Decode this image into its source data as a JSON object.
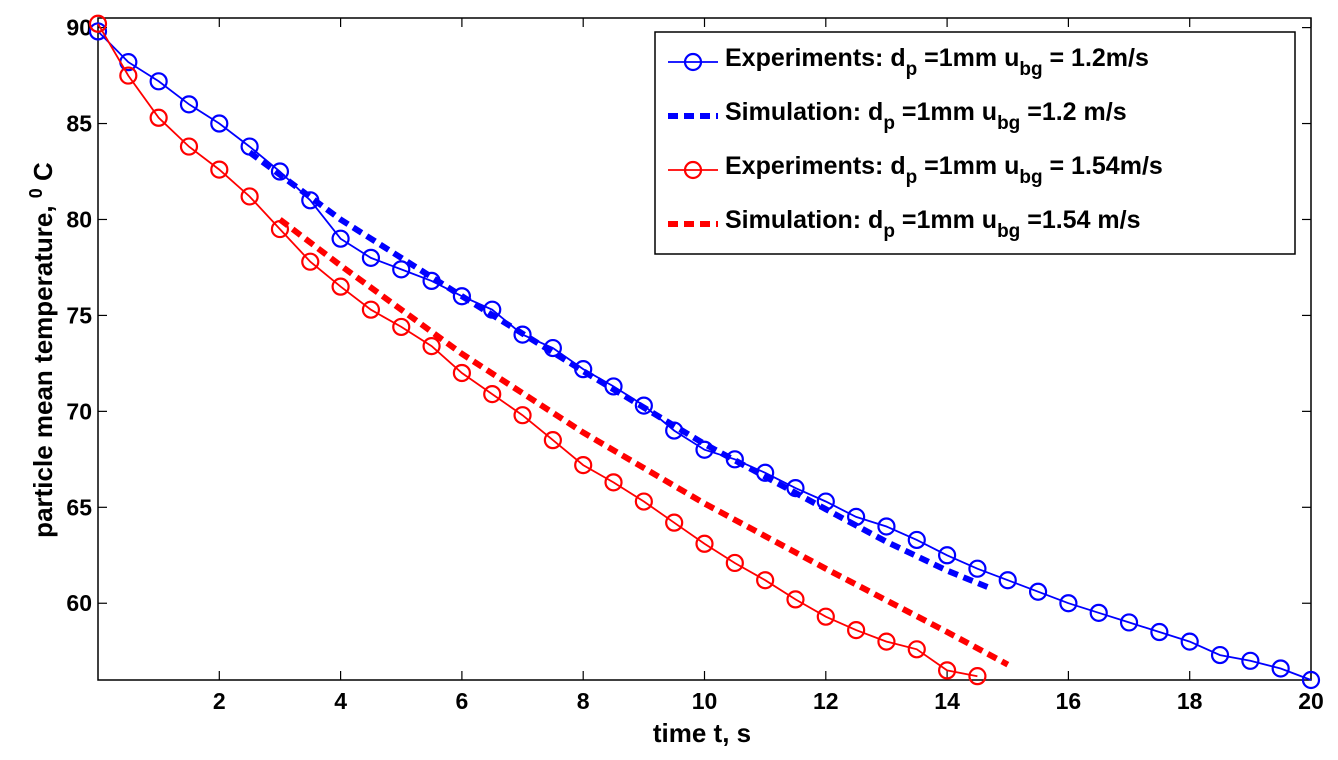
{
  "chart_data": {
    "type": "line",
    "xlabel": "time t, s",
    "ylabel": "particle mean temperature,",
    "ylabel_sup": "0",
    "ylabel_unit": "C",
    "xlim": [
      0,
      20
    ],
    "ylim": [
      56,
      90.5
    ],
    "x_ticks": [
      "2",
      "4",
      "6",
      "8",
      "10",
      "12",
      "14",
      "16",
      "18",
      "20"
    ],
    "y_ticks": [
      "60",
      "65",
      "70",
      "75",
      "80",
      "85",
      "90"
    ],
    "legend_position": "top-right",
    "grid": false,
    "series": [
      {
        "name": "Experiments: d_p =1mm u_bg = 1.2m/s",
        "legend": {
          "pre": "Experiments: d",
          "sub1": "p",
          "mid": " =1mm u",
          "sub2": "bg",
          "post": " = 1.2m/s"
        },
        "color": "#0000ff",
        "style": "solid-circles",
        "x": [
          0,
          0.5,
          1,
          1.5,
          2,
          2.5,
          3,
          3.5,
          4,
          4.5,
          5,
          5.5,
          6,
          6.5,
          7,
          7.5,
          8,
          8.5,
          9,
          9.5,
          10,
          10.5,
          11,
          11.5,
          12,
          12.5,
          13,
          13.5,
          14,
          14.5,
          15,
          15.5,
          16,
          16.5,
          17,
          17.5,
          18,
          18.5,
          19,
          19.5,
          20
        ],
        "y": [
          89.8,
          88.2,
          87.2,
          86.0,
          85.0,
          83.8,
          82.5,
          81.0,
          79.0,
          78.0,
          77.4,
          76.8,
          76.0,
          75.3,
          74.0,
          73.3,
          72.2,
          71.3,
          70.3,
          69.0,
          68.0,
          67.5,
          66.8,
          66.0,
          65.3,
          64.5,
          64.0,
          63.3,
          62.5,
          61.8,
          61.2,
          60.6,
          60.0,
          59.5,
          59.0,
          58.5,
          58.0,
          57.3,
          57.0,
          56.6,
          56.0
        ]
      },
      {
        "name": "Simulation: d_p =1mm u_bg =1.2 m/s",
        "legend": {
          "pre": "Simulation: d",
          "sub1": "p",
          "mid": " =1mm u",
          "sub2": "bg",
          "post": " =1.2 m/s"
        },
        "color": "#0000ff",
        "style": "dashed",
        "x": [
          2.5,
          4,
          6,
          8,
          10,
          12,
          13,
          14,
          14.7
        ],
        "y": [
          83.5,
          80.0,
          76.0,
          72.1,
          68.3,
          64.9,
          63.2,
          61.7,
          60.8
        ]
      },
      {
        "name": "Experiments: d_p =1mm u_bg = 1.54m/s",
        "legend": {
          "pre": "Experiments: d",
          "sub1": "p",
          "mid": " =1mm u",
          "sub2": "bg",
          "post": " = 1.54m/s"
        },
        "color": "#ff0000",
        "style": "solid-circles",
        "x": [
          0,
          0.5,
          1,
          1.5,
          2,
          2.5,
          3,
          3.5,
          4,
          4.5,
          5,
          5.5,
          6,
          6.5,
          7,
          7.5,
          8,
          8.5,
          9,
          9.5,
          10,
          10.5,
          11,
          11.5,
          12,
          12.5,
          13,
          13.5,
          14,
          14.5
        ],
        "y": [
          90.2,
          87.5,
          85.3,
          83.8,
          82.6,
          81.2,
          79.5,
          77.8,
          76.5,
          75.3,
          74.4,
          73.4,
          72.0,
          70.9,
          69.8,
          68.5,
          67.2,
          66.3,
          65.3,
          64.2,
          63.1,
          62.1,
          61.2,
          60.2,
          59.3,
          58.6,
          58.0,
          57.6,
          56.5,
          56.2
        ]
      },
      {
        "name": "Simulation: d_p =1mm u_bg =1.54 m/s",
        "legend": {
          "pre": "Simulation: d",
          "sub1": "p",
          "mid": " =1mm u",
          "sub2": "bg",
          "post": " =1.54 m/s"
        },
        "color": "#ff0000",
        "style": "dashed",
        "x": [
          3,
          4,
          6,
          8,
          10,
          12,
          14,
          15
        ],
        "y": [
          80.0,
          77.6,
          73.0,
          68.9,
          65.2,
          61.8,
          58.5,
          56.8
        ]
      }
    ]
  }
}
